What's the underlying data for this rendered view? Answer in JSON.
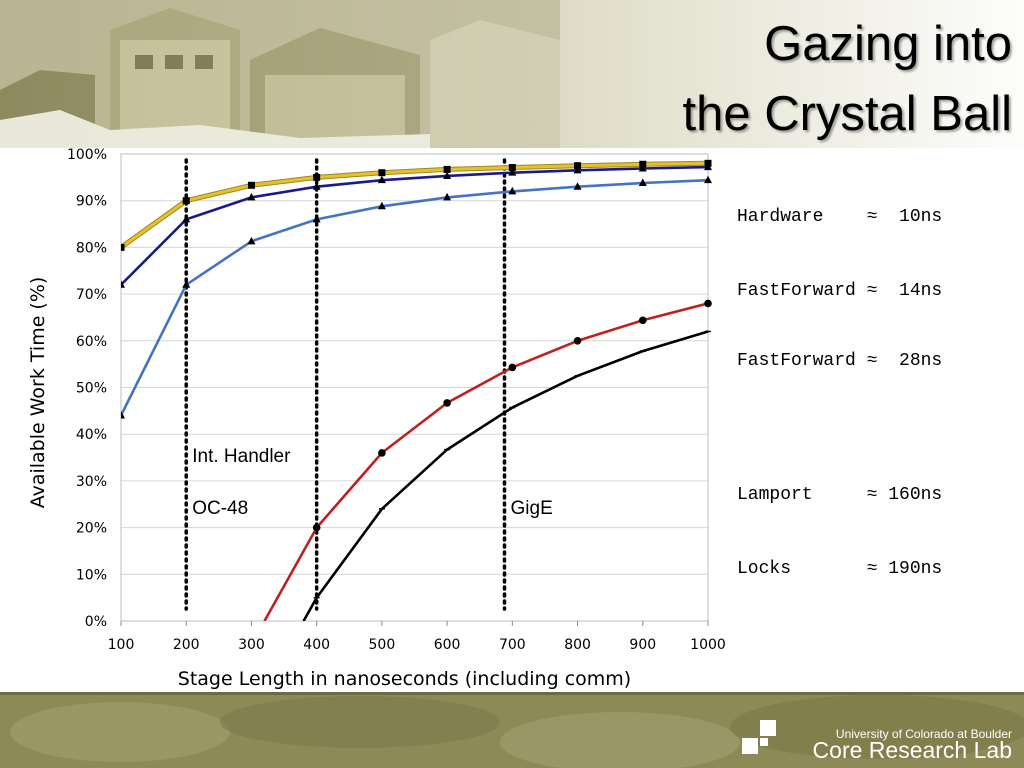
{
  "slide": {
    "title_line1": "Gazing into",
    "title_line2": "the Crystal Ball",
    "org_line1": "University of Colorado at Boulder",
    "org_line2": "Core Research Lab"
  },
  "legend": {
    "fast_group": [
      "Hardware    ≈  10ns",
      "FastForward ≈  14ns",
      "FastForward ≈  28ns"
    ],
    "slow_group": [
      "Lamport     ≈ 160ns",
      "Locks       ≈ 190ns"
    ]
  },
  "colors": {
    "banner": "#d8d6bc",
    "footer": "#8e8a58",
    "grid": "#d6d6d6"
  },
  "chart_data": {
    "type": "line",
    "xlabel": "Stage Length in nanoseconds (including comm)",
    "ylabel": "Available Work Time (%)",
    "xlim": [
      100,
      1000
    ],
    "ylim": [
      0,
      100
    ],
    "x_ticks": [
      100,
      200,
      300,
      400,
      500,
      600,
      700,
      800,
      900,
      1000
    ],
    "y_ticks": [
      "0%",
      "10%",
      "20%",
      "30%",
      "40%",
      "50%",
      "60%",
      "70%",
      "80%",
      "90%",
      "100%"
    ],
    "grid": true,
    "series": [
      {
        "color": "#e8c02a",
        "marker": "square",
        "x": [
          100,
          200,
          300,
          400,
          500,
          600,
          700,
          800,
          900,
          1000
        ],
        "values": [
          80,
          90,
          93.3,
          95,
          96,
          96.7,
          97.1,
          97.5,
          97.8,
          98
        ]
      },
      {
        "color": "#1a1a8f",
        "marker": "triangle",
        "x": [
          100,
          200,
          300,
          400,
          500,
          600,
          700,
          800,
          900,
          1000
        ],
        "values": [
          72,
          86,
          90.7,
          93,
          94.4,
          95.3,
          96,
          96.5,
          96.9,
          97.2
        ]
      },
      {
        "color": "#4472c4",
        "marker": "triangle",
        "x": [
          100,
          200,
          300,
          400,
          500,
          600,
          700,
          800,
          900,
          1000
        ],
        "values": [
          44,
          72,
          81.3,
          86,
          88.8,
          90.7,
          92,
          93,
          93.8,
          94.4
        ]
      },
      {
        "color": "#c0201c",
        "marker": "circle",
        "x": [
          320,
          400,
          500,
          600,
          700,
          800,
          900,
          1000
        ],
        "values": [
          0,
          20,
          36,
          46.7,
          54.3,
          60,
          64.4,
          68
        ]
      },
      {
        "color": "#000000",
        "marker": "tick",
        "x": [
          380,
          400,
          500,
          600,
          700,
          800,
          900,
          1000
        ],
        "values": [
          0,
          5,
          24,
          36.7,
          45.7,
          52.5,
          57.8,
          62
        ]
      }
    ],
    "vlines": [
      {
        "x": 200,
        "labels": [
          "Int. Handler",
          "OC-48"
        ]
      },
      {
        "x": 400,
        "labels": []
      },
      {
        "x": 688,
        "labels": [
          "GigE"
        ]
      }
    ]
  }
}
